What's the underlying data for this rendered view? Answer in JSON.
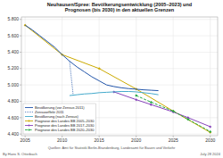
{
  "chart_data": {
    "type": "line",
    "title": "Neuhausen/Spree: Bevölkerungsentwicklung (2005–2023) und\nPrognosen (bis 2030) in den aktuellen Grenzen",
    "xlim": [
      2004.5,
      2031
    ],
    "xticks": [
      2005,
      2010,
      2015,
      2020,
      2025,
      2030
    ],
    "ylim": [
      4380,
      5830
    ],
    "yticks": [
      {
        "value": 4400,
        "label": "4.400"
      },
      {
        "value": 4600,
        "label": "4.600"
      },
      {
        "value": 4800,
        "label": "4.800"
      },
      {
        "value": 5000,
        "label": "5.000"
      },
      {
        "value": 5200,
        "label": "5.200"
      },
      {
        "value": 5400,
        "label": "5.400"
      },
      {
        "value": 5600,
        "label": "5.600"
      },
      {
        "value": 5800,
        "label": "5.800"
      }
    ],
    "grid": true,
    "legend": "lower left",
    "series": [
      {
        "name": "Bevölkerung (vor Zensus 2011)",
        "color": "#2255aa",
        "line_style": "solid",
        "x": [
          2005,
          2006,
          2007,
          2008,
          2009,
          2010,
          2011,
          2012,
          2013,
          2014,
          2015,
          2016,
          2017,
          2018,
          2019,
          2020,
          2021,
          2022,
          2023
        ],
        "values": [
          5730,
          5670,
          5600,
          5530,
          5460,
          5370,
          5290,
          5220,
          5160,
          5100,
          5050,
          5000,
          4980,
          4965,
          4955,
          4948,
          4940,
          4935,
          4930
        ]
      },
      {
        "name": "Zensuseffekt 2011",
        "color": "#2255aa",
        "line_style": "dotted",
        "x": [
          2011,
          2011.5
        ],
        "values": [
          5290,
          4870
        ]
      },
      {
        "name": "Bevölkerung (nach Zensus)",
        "color": "#44aacc",
        "line_style": "solid",
        "x": [
          2011,
          2012,
          2013,
          2014,
          2015,
          2016,
          2017,
          2018,
          2019,
          2020,
          2021,
          2022,
          2023
        ],
        "values": [
          4870,
          4880,
          4890,
          4895,
          4905,
          4910,
          4915,
          4920,
          4920,
          4915,
          4905,
          4895,
          4880
        ]
      },
      {
        "name": "Prognose des Landes BB 2005–2030",
        "color": "#ccaa00",
        "line_style": "solid",
        "marker": "diamond",
        "x": [
          2005,
          2010,
          2015,
          2020,
          2025,
          2030
        ],
        "values": [
          5730,
          5370,
          5200,
          4950,
          4680,
          4420
        ]
      },
      {
        "name": "Prognose des Landes BB 2017–2030",
        "color": "#8844bb",
        "line_style": "solid",
        "marker": "diamond",
        "x": [
          2017,
          2020,
          2022,
          2025,
          2027,
          2030
        ],
        "values": [
          4915,
          4820,
          4760,
          4670,
          4600,
          4490
        ]
      },
      {
        "name": "Prognose des Landes BB 2020–2030",
        "color": "#22aa44",
        "line_style": "dashed",
        "marker": "diamond",
        "x": [
          2020,
          2022,
          2025,
          2027,
          2030
        ],
        "values": [
          4870,
          4790,
          4680,
          4580,
          4430
        ]
      }
    ],
    "annotations": [
      "By Hans S. Otterbach",
      "Quellen: Amt für Statistik Berlin-Brandenburg, Landesamt für Bauen und Verkehr",
      "July 28 2024"
    ]
  }
}
